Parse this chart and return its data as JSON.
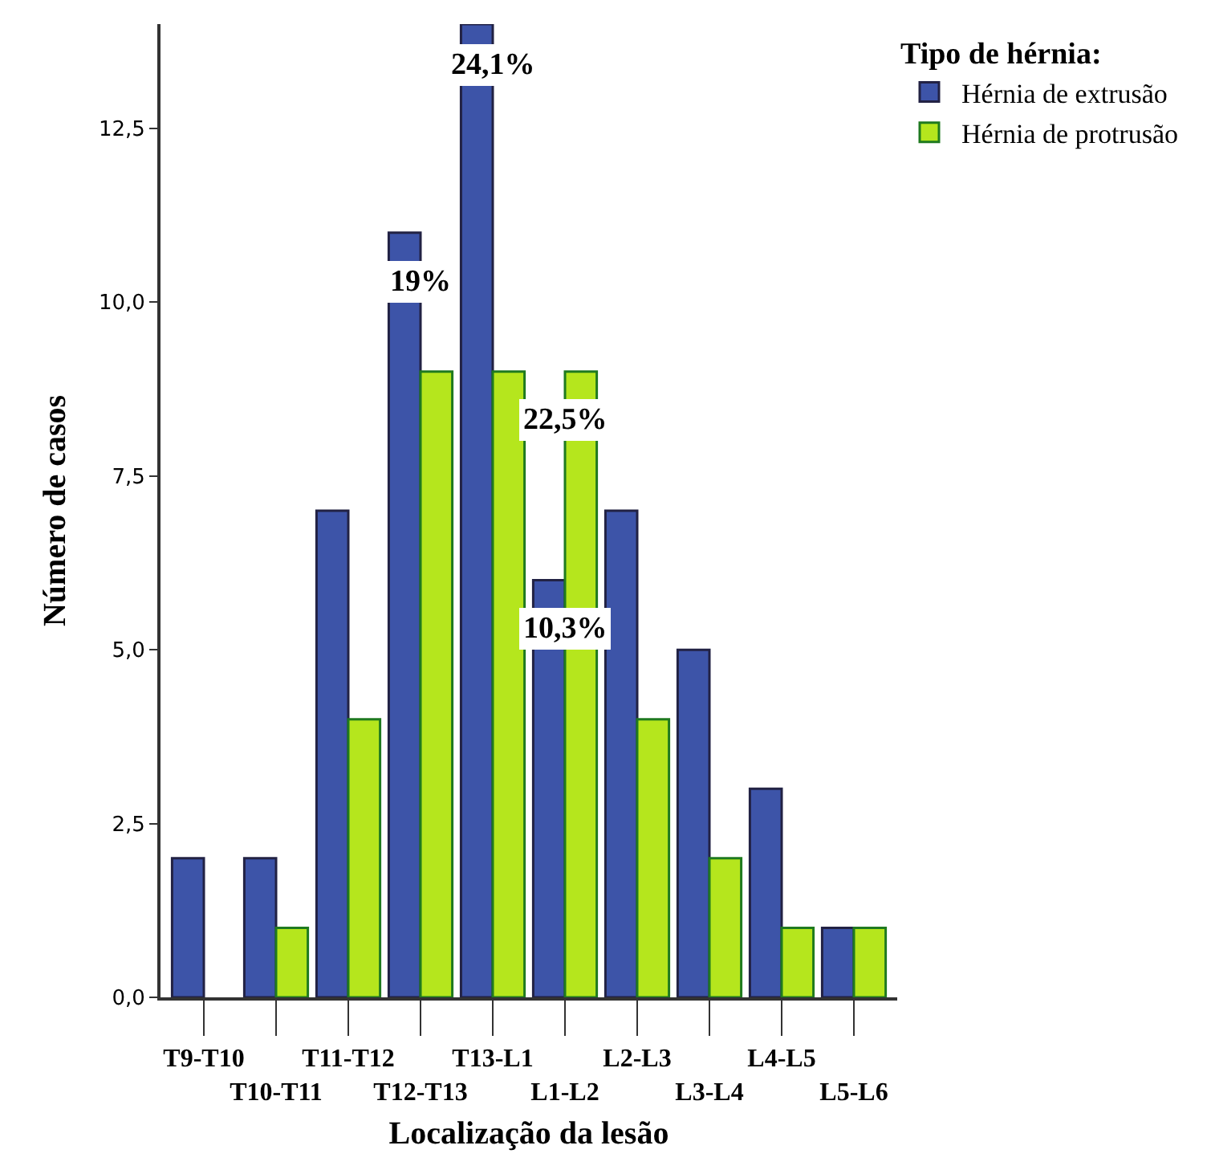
{
  "chart_data": {
    "type": "bar",
    "xlabel": "Localização da lesão",
    "ylabel": "Número de casos",
    "legend_title": "Tipo de hérnia:",
    "categories": [
      "T9-T10",
      "T10-T11",
      "T11-T12",
      "T12-T13",
      "T13-L1",
      "L1-L2",
      "L2-L3",
      "L3-L4",
      "L4-L5",
      "L5-L6"
    ],
    "series": [
      {
        "name": "Hérnia de extrusão",
        "color": "#3d54a8",
        "values": [
          2,
          2,
          7,
          11,
          14,
          6,
          7,
          5,
          3,
          1
        ]
      },
      {
        "name": "Hérnia de protrusão",
        "color": "#b5e61d",
        "values": [
          null,
          1,
          4,
          9,
          9,
          9,
          4,
          2,
          1,
          1
        ]
      }
    ],
    "ylim": [
      0,
      14
    ],
    "yticks": [
      {
        "value": 0,
        "label": "0,0"
      },
      {
        "value": 2.5,
        "label": "2,5"
      },
      {
        "value": 5,
        "label": "5,0"
      },
      {
        "value": 7.5,
        "label": "7,5"
      },
      {
        "value": 10,
        "label": "10,0"
      },
      {
        "value": 12.5,
        "label": "12,5"
      }
    ],
    "annotations": [
      {
        "text": "24,1%",
        "x": "T13-L1",
        "y": 13.4
      },
      {
        "text": "19%",
        "x": "T12-T13",
        "y": 10.3
      },
      {
        "text": "22,5%",
        "x": "L1-L2",
        "y": 8.3
      },
      {
        "text": "10,3%",
        "x": "L1-L2",
        "y": 5.3
      }
    ],
    "grid": false,
    "legend": "top right"
  }
}
